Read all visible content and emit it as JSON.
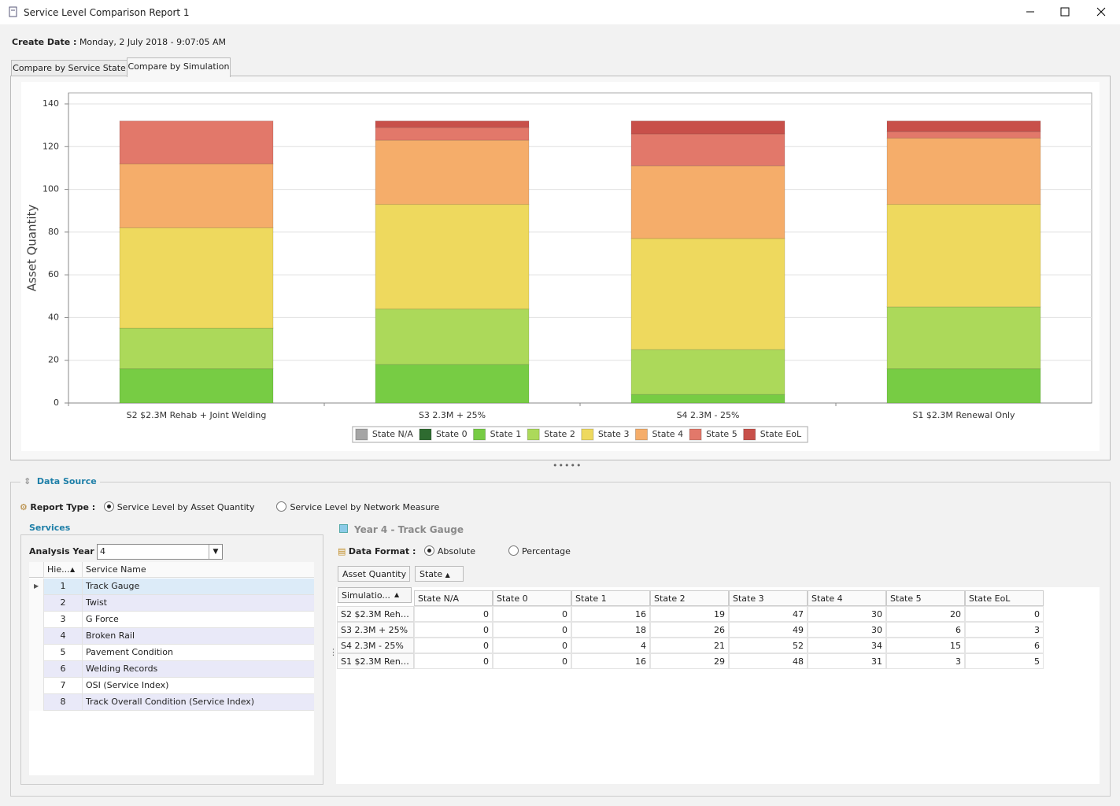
{
  "window": {
    "title": "Service Level Comparison Report 1"
  },
  "create_date": {
    "label": "Create Date :",
    "value": "Monday, 2 July 2018 - 9:07:05 AM"
  },
  "tabs": [
    "Compare by Service State",
    "Compare by Simulation"
  ],
  "chart_data": {
    "type": "stacked_bar",
    "y_label": "Asset Quantity",
    "categories": [
      "S2 $2.3M Rehab + Joint Welding",
      "S3 2.3M + 25%",
      "S4 2.3M - 25%",
      "S1 $2.3M Renewal Only"
    ],
    "series": [
      {
        "name": "State N/A",
        "color": "#a5a5a5",
        "values": [
          0,
          0,
          0,
          0
        ]
      },
      {
        "name": "State 0",
        "color": "#2e6b30",
        "values": [
          0,
          0,
          0,
          0
        ]
      },
      {
        "name": "State 1",
        "color": "#77cc44",
        "values": [
          16,
          18,
          4,
          16
        ]
      },
      {
        "name": "State 2",
        "color": "#acd95a",
        "values": [
          19,
          26,
          21,
          29
        ]
      },
      {
        "name": "State 3",
        "color": "#eed95e",
        "values": [
          47,
          49,
          52,
          48
        ]
      },
      {
        "name": "State 4",
        "color": "#f5ad6a",
        "values": [
          30,
          30,
          34,
          31
        ]
      },
      {
        "name": "State 5",
        "color": "#e2786a",
        "values": [
          20,
          6,
          15,
          3
        ]
      },
      {
        "name": "State EoL",
        "color": "#c8504a",
        "values": [
          0,
          3,
          6,
          5
        ]
      }
    ],
    "ylim": [
      0,
      140
    ],
    "yticks": [
      0,
      20,
      40,
      60,
      80,
      100,
      120,
      140
    ],
    "grid": true,
    "legend": "bottom"
  },
  "data_source": {
    "title": "Data Source",
    "report_type_label": "Report Type :",
    "report_types": [
      "Service Level by Asset Quantity",
      "Service Level by Network Measure"
    ]
  },
  "services": {
    "title": "Services",
    "analysis_year_label": "Analysis Year :",
    "analysis_year": "4",
    "columns": [
      "Hie...",
      "Service Name"
    ],
    "rows": [
      [
        "1",
        "Track Gauge"
      ],
      [
        "2",
        "Twist"
      ],
      [
        "3",
        "G Force"
      ],
      [
        "4",
        "Broken Rail"
      ],
      [
        "5",
        "Pavement Condition"
      ],
      [
        "6",
        "Welding Records"
      ],
      [
        "7",
        "OSI (Service Index)"
      ],
      [
        "8",
        "Track Overall Condition (Service Index)"
      ]
    ]
  },
  "year_title": "Year 4 - Track Gauge",
  "data_format": {
    "label": "Data Format :",
    "options": [
      "Absolute",
      "Percentage"
    ]
  },
  "pivot": {
    "fields": [
      "Asset Quantity",
      "State"
    ],
    "row_header": "Simulatio..."
  }
}
